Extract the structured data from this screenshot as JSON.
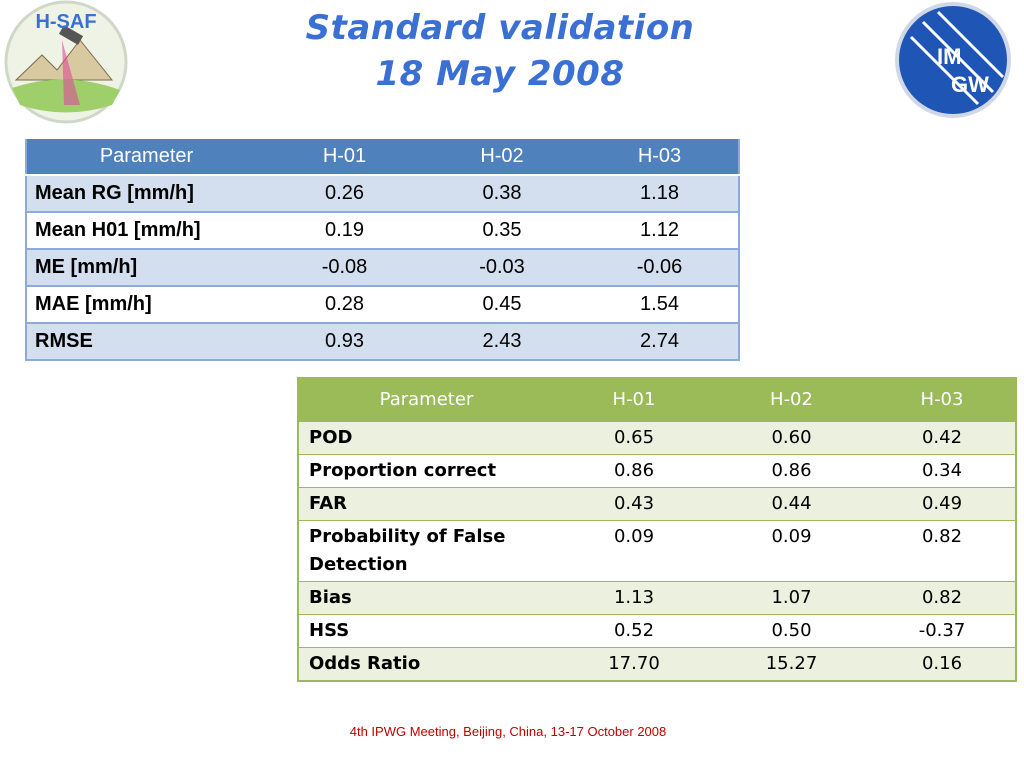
{
  "header": {
    "title_lines": [
      "Standard validation",
      "18 May 2008"
    ],
    "logo_left": "H-SAF",
    "logo_right": [
      "IM",
      "GW"
    ]
  },
  "table1": {
    "columns": [
      "Parameter",
      "H-01",
      "H-02",
      "H-03"
    ],
    "rows": [
      [
        "Mean RG [mm/h]",
        "0.26",
        "0.38",
        "1.18"
      ],
      [
        "Mean H01 [mm/h]",
        "0.19",
        "0.35",
        "1.12"
      ],
      [
        "ME [mm/h]",
        "-0.08",
        "-0.03",
        "-0.06"
      ],
      [
        "MAE [mm/h]",
        "0.28",
        "0.45",
        "1.54"
      ],
      [
        "RMSE",
        "0.93",
        "2.43",
        "2.74"
      ]
    ]
  },
  "table2": {
    "columns": [
      "Parameter",
      "H-01",
      "H-02",
      "H-03"
    ],
    "rows": [
      [
        "POD",
        "0.65",
        "0.60",
        "0.42"
      ],
      [
        "Proportion correct",
        "0.86",
        "0.86",
        "0.34"
      ],
      [
        "FAR",
        "0.43",
        "0.44",
        "0.49"
      ],
      [
        "Probability of False Detection",
        "0.09",
        "0.09",
        "0.82"
      ],
      [
        "Bias",
        "1.13",
        "1.07",
        "0.82"
      ],
      [
        "HSS",
        "0.52",
        "0.50",
        "-0.37"
      ],
      [
        "Odds Ratio",
        "17.70",
        "15.27",
        "0.16"
      ]
    ]
  },
  "footer": "4th IPWG Meeting, Beijing, China, 13-17 October 2008"
}
